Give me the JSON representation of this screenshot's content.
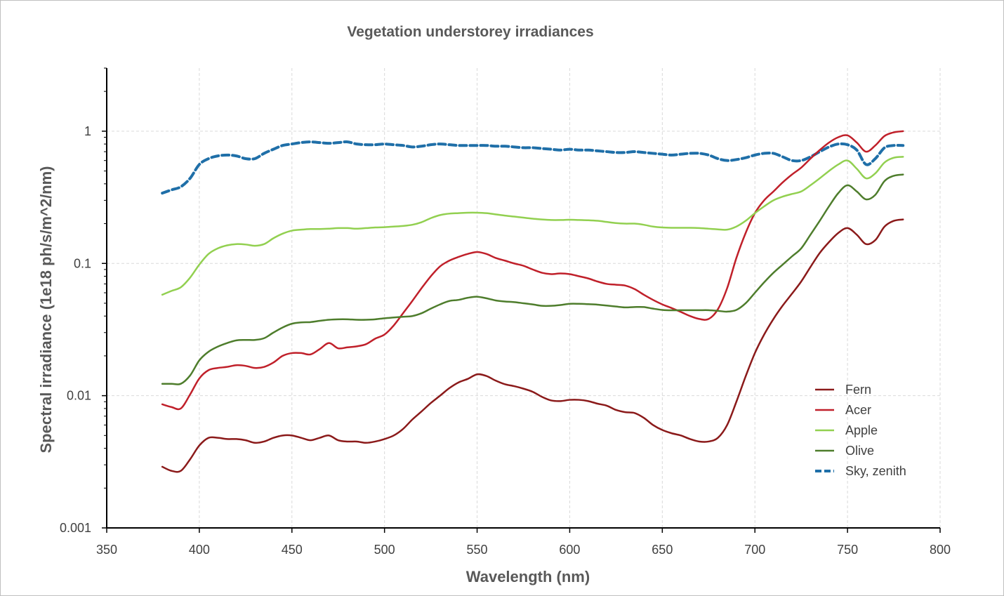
{
  "chart_data": {
    "type": "line",
    "title": "Vegetation understorey irradiances",
    "xlabel": "Wavelength (nm)",
    "ylabel": "Spectral irradiance (1e18 ph/s/m^2/nm)",
    "xlim": [
      350,
      800
    ],
    "ylim": [
      0.001,
      3
    ],
    "yscale": "log",
    "xticks": [
      350,
      400,
      450,
      500,
      550,
      600,
      650,
      700,
      750,
      800
    ],
    "yticks": [
      0.001,
      0.01,
      0.1,
      1
    ],
    "ytick_labels": [
      "0.001",
      "0.01",
      "0.1",
      "1"
    ],
    "grid": true,
    "legend_position": "bottom-right",
    "x": [
      380,
      385,
      390,
      395,
      400,
      405,
      410,
      415,
      420,
      425,
      430,
      435,
      440,
      445,
      450,
      455,
      460,
      465,
      470,
      475,
      480,
      485,
      490,
      495,
      500,
      505,
      510,
      515,
      520,
      525,
      530,
      535,
      540,
      545,
      550,
      555,
      560,
      565,
      570,
      575,
      580,
      585,
      590,
      595,
      600,
      605,
      610,
      615,
      620,
      625,
      630,
      635,
      640,
      645,
      650,
      655,
      660,
      665,
      670,
      675,
      680,
      685,
      690,
      695,
      700,
      705,
      710,
      715,
      720,
      725,
      730,
      735,
      740,
      745,
      750,
      755,
      760,
      765,
      770,
      775,
      780
    ],
    "series": [
      {
        "name": "Fern",
        "color": "#8b1a1a",
        "dash": "solid",
        "values": [
          0.0029,
          0.0027,
          0.0027,
          0.0033,
          0.0042,
          0.0048,
          0.0048,
          0.0047,
          0.0047,
          0.0046,
          0.0044,
          0.0045,
          0.0048,
          0.005,
          0.005,
          0.0048,
          0.0046,
          0.0048,
          0.005,
          0.0046,
          0.0045,
          0.0045,
          0.0044,
          0.0045,
          0.0047,
          0.005,
          0.0056,
          0.0066,
          0.0076,
          0.0088,
          0.01,
          0.0114,
          0.0126,
          0.0134,
          0.0145,
          0.0141,
          0.013,
          0.0122,
          0.0118,
          0.0113,
          0.0107,
          0.0098,
          0.0092,
          0.0091,
          0.0093,
          0.0093,
          0.0091,
          0.0087,
          0.0084,
          0.0078,
          0.0075,
          0.0074,
          0.0068,
          0.006,
          0.0055,
          0.0052,
          0.005,
          0.0047,
          0.0045,
          0.0045,
          0.0048,
          0.006,
          0.009,
          0.014,
          0.021,
          0.029,
          0.038,
          0.048,
          0.059,
          0.073,
          0.094,
          0.12,
          0.145,
          0.17,
          0.185,
          0.165,
          0.14,
          0.15,
          0.19,
          0.21,
          0.215
        ]
      },
      {
        "name": "Acer",
        "color": "#c0202a",
        "dash": "solid",
        "values": [
          0.0086,
          0.0082,
          0.008,
          0.0102,
          0.0135,
          0.0156,
          0.0162,
          0.0165,
          0.017,
          0.0168,
          0.0162,
          0.0165,
          0.0178,
          0.02,
          0.021,
          0.021,
          0.0205,
          0.0225,
          0.025,
          0.0228,
          0.0232,
          0.0236,
          0.0245,
          0.027,
          0.029,
          0.034,
          0.042,
          0.052,
          0.065,
          0.08,
          0.095,
          0.105,
          0.112,
          0.118,
          0.122,
          0.118,
          0.11,
          0.105,
          0.1,
          0.096,
          0.09,
          0.085,
          0.083,
          0.084,
          0.083,
          0.08,
          0.077,
          0.073,
          0.07,
          0.069,
          0.068,
          0.064,
          0.058,
          0.053,
          0.049,
          0.046,
          0.043,
          0.04,
          0.038,
          0.038,
          0.045,
          0.065,
          0.11,
          0.17,
          0.24,
          0.3,
          0.35,
          0.41,
          0.47,
          0.53,
          0.62,
          0.72,
          0.82,
          0.9,
          0.93,
          0.82,
          0.7,
          0.78,
          0.92,
          0.98,
          1.0
        ]
      },
      {
        "name": "Apple",
        "color": "#92d050",
        "dash": "solid",
        "values": [
          0.058,
          0.062,
          0.066,
          0.078,
          0.098,
          0.118,
          0.13,
          0.137,
          0.14,
          0.139,
          0.136,
          0.14,
          0.155,
          0.168,
          0.177,
          0.18,
          0.182,
          0.182,
          0.183,
          0.185,
          0.185,
          0.183,
          0.185,
          0.187,
          0.188,
          0.19,
          0.192,
          0.196,
          0.205,
          0.22,
          0.232,
          0.238,
          0.24,
          0.242,
          0.242,
          0.24,
          0.235,
          0.23,
          0.226,
          0.222,
          0.218,
          0.215,
          0.213,
          0.213,
          0.214,
          0.213,
          0.212,
          0.21,
          0.206,
          0.202,
          0.2,
          0.2,
          0.196,
          0.19,
          0.187,
          0.186,
          0.186,
          0.186,
          0.185,
          0.183,
          0.181,
          0.18,
          0.19,
          0.21,
          0.24,
          0.27,
          0.3,
          0.32,
          0.335,
          0.35,
          0.39,
          0.44,
          0.5,
          0.56,
          0.6,
          0.52,
          0.44,
          0.48,
          0.58,
          0.63,
          0.64
        ]
      },
      {
        "name": "Olive",
        "color": "#4e7d2c",
        "dash": "solid",
        "values": [
          0.0123,
          0.0123,
          0.0123,
          0.0142,
          0.0185,
          0.0215,
          0.0235,
          0.025,
          0.0262,
          0.0264,
          0.0264,
          0.0272,
          0.03,
          0.0328,
          0.035,
          0.0358,
          0.036,
          0.0368,
          0.0375,
          0.0378,
          0.0378,
          0.0375,
          0.0375,
          0.0378,
          0.0385,
          0.039,
          0.0395,
          0.04,
          0.042,
          0.0455,
          0.049,
          0.052,
          0.053,
          0.055,
          0.056,
          0.0545,
          0.0525,
          0.0515,
          0.051,
          0.05,
          0.049,
          0.0478,
          0.0478,
          0.0485,
          0.0495,
          0.0495,
          0.0492,
          0.0488,
          0.048,
          0.0472,
          0.0465,
          0.0468,
          0.0468,
          0.0455,
          0.0445,
          0.0442,
          0.0443,
          0.0443,
          0.0443,
          0.0443,
          0.0438,
          0.0432,
          0.0445,
          0.05,
          0.06,
          0.072,
          0.085,
          0.098,
          0.113,
          0.13,
          0.165,
          0.21,
          0.27,
          0.34,
          0.39,
          0.35,
          0.305,
          0.33,
          0.42,
          0.46,
          0.47
        ]
      },
      {
        "name": "Sky, zenith",
        "color": "#1f6fa8",
        "dash": "dashed",
        "values": [
          0.34,
          0.36,
          0.38,
          0.44,
          0.56,
          0.62,
          0.65,
          0.66,
          0.65,
          0.62,
          0.62,
          0.68,
          0.73,
          0.78,
          0.8,
          0.82,
          0.83,
          0.82,
          0.81,
          0.82,
          0.83,
          0.8,
          0.79,
          0.79,
          0.8,
          0.79,
          0.78,
          0.76,
          0.77,
          0.79,
          0.8,
          0.79,
          0.78,
          0.78,
          0.78,
          0.78,
          0.77,
          0.77,
          0.76,
          0.75,
          0.75,
          0.74,
          0.73,
          0.72,
          0.73,
          0.72,
          0.72,
          0.71,
          0.7,
          0.69,
          0.69,
          0.7,
          0.69,
          0.68,
          0.67,
          0.66,
          0.67,
          0.68,
          0.68,
          0.66,
          0.62,
          0.6,
          0.61,
          0.63,
          0.66,
          0.68,
          0.68,
          0.64,
          0.6,
          0.6,
          0.64,
          0.7,
          0.76,
          0.8,
          0.79,
          0.72,
          0.56,
          0.62,
          0.75,
          0.78,
          0.78
        ]
      }
    ]
  }
}
